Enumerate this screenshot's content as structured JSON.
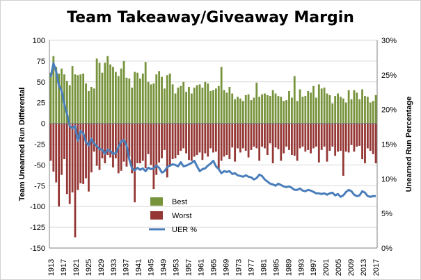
{
  "chart_data": {
    "title": "Team Takeaway/Giveaway Margin",
    "type": "bar",
    "ylabel": "Team Unearned Run Differental",
    "y2label": "Unearned Run Percentage",
    "ylim": [
      -150,
      100
    ],
    "y_ticks": [
      100,
      75,
      50,
      25,
      0,
      -25,
      -50,
      -75,
      -100,
      -125,
      -150
    ],
    "y2lim": [
      0,
      30
    ],
    "y2_ticks": [
      "30%",
      "25%",
      "20%",
      "15%",
      "10%",
      "5%",
      "0%"
    ],
    "x_tick_labels": [
      "1913",
      "1917",
      "1921",
      "1925",
      "1929",
      "1933",
      "1937",
      "1941",
      "1945",
      "1949",
      "1953",
      "1957",
      "1961",
      "1965",
      "1969",
      "1973",
      "1977",
      "1981",
      "1985",
      "1989",
      "1993",
      "1997",
      "2001",
      "2005",
      "2009",
      "2013",
      "2017"
    ],
    "legend": {
      "position": "bottom-left",
      "best": "Best",
      "worst": "Worst",
      "uer": "UER %"
    },
    "colors": {
      "best": "#77933C",
      "worst": "#953735",
      "uer": "#4A7EBB",
      "gridline": "#D9D9D9"
    },
    "years": [
      1913,
      2017
    ],
    "series": [
      {
        "name": "Best",
        "values": [
          61,
          81,
          68,
          60,
          66,
          59,
          51,
          46,
          69,
          59,
          58,
          59,
          60,
          48,
          39,
          44,
          42,
          78,
          73,
          61,
          73,
          81,
          71,
          68,
          62,
          57,
          66,
          75,
          55,
          54,
          43,
          62,
          61,
          54,
          60,
          74,
          50,
          47,
          48,
          59,
          63,
          56,
          42,
          58,
          60,
          47,
          36,
          43,
          45,
          50,
          38,
          44,
          36,
          43,
          46,
          47,
          43,
          50,
          48,
          39,
          40,
          42,
          45,
          68,
          40,
          37,
          44,
          36,
          29,
          32,
          30,
          27,
          34,
          35,
          28,
          31,
          49,
          32,
          35,
          36,
          34,
          33,
          40,
          36,
          33,
          32,
          27,
          28,
          39,
          31,
          57,
          27,
          41,
          32,
          33,
          39,
          37,
          45,
          31,
          47,
          42,
          43,
          36,
          34,
          24,
          33,
          36,
          32,
          30,
          25,
          40,
          29,
          40,
          37,
          29,
          41,
          33,
          32,
          25,
          27,
          34
        ]
      },
      {
        "name": "Worst",
        "values": [
          -45,
          -58,
          -71,
          -100,
          -62,
          -43,
          -85,
          -97,
          -83,
          -137,
          -80,
          -72,
          -73,
          -66,
          -82,
          -59,
          -34,
          -51,
          -56,
          -42,
          -48,
          -38,
          -41,
          -53,
          -42,
          -60,
          -57,
          -46,
          -52,
          -40,
          -60,
          -95,
          -48,
          -48,
          -45,
          -54,
          -37,
          -50,
          -79,
          -62,
          -47,
          -42,
          -32,
          -65,
          -52,
          -43,
          -42,
          -38,
          -33,
          -30,
          -36,
          -44,
          -45,
          -40,
          -38,
          -35,
          -44,
          -36,
          -40,
          -30,
          -35,
          -34,
          -55,
          -45,
          -40,
          -38,
          -43,
          -29,
          -46,
          -30,
          -35,
          -30,
          -33,
          -41,
          -32,
          -28,
          -30,
          -45,
          -28,
          -30,
          -38,
          -24,
          -48,
          -29,
          -31,
          -45,
          -36,
          -28,
          -32,
          -38,
          -39,
          -45,
          -30,
          -28,
          -34,
          -32,
          -36,
          -30,
          -28,
          -47,
          -32,
          -28,
          -46,
          -33,
          -28,
          -39,
          -34,
          -33,
          -63,
          -34,
          -35,
          -26,
          -34,
          -28,
          -27,
          -43,
          -48,
          -30,
          -33,
          -37,
          -48
        ]
      },
      {
        "name": "UER %",
        "axis": "right",
        "values": [
          24.7,
          26.7,
          25.5,
          23.5,
          22.7,
          20.8,
          19.4,
          17.6,
          17.3,
          17.6,
          15.5,
          16.9,
          16.6,
          15.3,
          14.8,
          15.8,
          15.1,
          14.7,
          14.3,
          14.2,
          13.6,
          14.2,
          14.0,
          13.6,
          13.7,
          14.6,
          15.4,
          15.6,
          14.8,
          12.8,
          11.5,
          11.2,
          11.6,
          11.3,
          11.5,
          11.1,
          11.6,
          11.4,
          11.5,
          11.9,
          11.6,
          10.9,
          11.1,
          11.7,
          11.9,
          12.1,
          12.0,
          11.8,
          12.4,
          11.8,
          11.9,
          12.1,
          12.3,
          12.6,
          11.8,
          11.1,
          11.4,
          11.5,
          11.9,
          12.2,
          12.6,
          11.8,
          11.4,
          10.8,
          11.1,
          11.0,
          11.1,
          10.7,
          10.8,
          10.5,
          10.4,
          10.3,
          10.5,
          10.3,
          10.2,
          9.9,
          10.1,
          10.6,
          10.4,
          9.9,
          9.6,
          9.3,
          9.2,
          9.0,
          9.3,
          9.1,
          8.9,
          8.8,
          8.9,
          8.7,
          8.4,
          8.4,
          8.6,
          8.3,
          8.2,
          8.4,
          8.3,
          8.1,
          7.9,
          7.9,
          7.8,
          7.9,
          7.7,
          7.9,
          8.0,
          7.6,
          7.8,
          7.4,
          7.6,
          8.1,
          8.4,
          8.2,
          7.7,
          7.5,
          7.6,
          8.2,
          8.0,
          7.5,
          7.4,
          7.5,
          7.5
        ]
      }
    ]
  }
}
